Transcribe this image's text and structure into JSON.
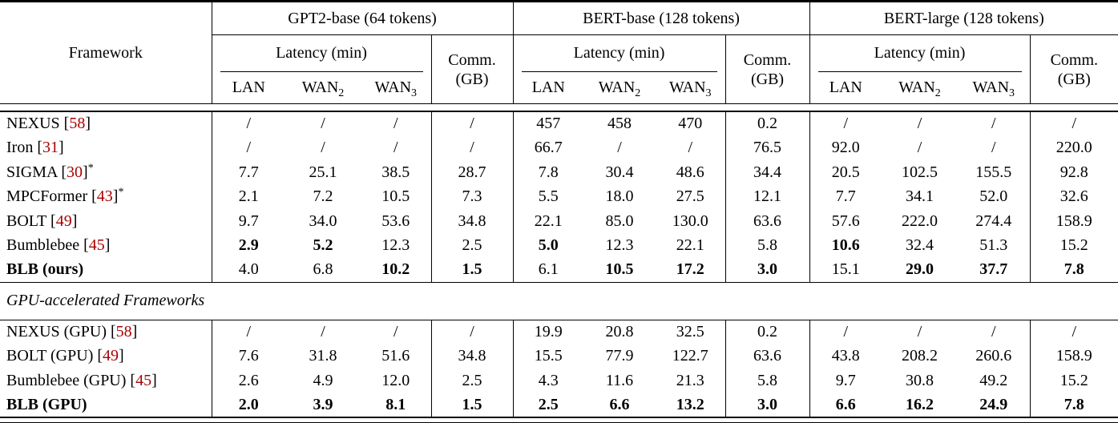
{
  "table": {
    "framework_label": "Framework",
    "subcols": [
      {
        "base": "LAN",
        "sub": ""
      },
      {
        "base": "WAN",
        "sub": "2"
      },
      {
        "base": "WAN",
        "sub": "3"
      }
    ],
    "groups": [
      {
        "title": "GPT2-base (64 tokens)",
        "latency_label": "Latency (min)",
        "comm_line1": "Comm.",
        "comm_line2": "(GB)"
      },
      {
        "title": "BERT-base (128 tokens)",
        "latency_label": "Latency (min)",
        "comm_line1": "Comm.",
        "comm_line2": "(GB)"
      },
      {
        "title": "BERT-large (128 tokens)",
        "latency_label": "Latency (min)",
        "comm_line1": "Comm.",
        "comm_line2": "(GB)"
      }
    ],
    "colors": {
      "citation": "#a90000",
      "text": "#000000",
      "rule": "#000000"
    },
    "sections": [
      {
        "label": "",
        "rows": [
          {
            "name": "NEXUS",
            "cite": "58",
            "sup": "",
            "bold": false,
            "cells": [
              {
                "v": "/",
                "b": false
              },
              {
                "v": "/",
                "b": false
              },
              {
                "v": "/",
                "b": false
              },
              {
                "v": "/",
                "b": false
              },
              {
                "v": "457",
                "b": false
              },
              {
                "v": "458",
                "b": false
              },
              {
                "v": "470",
                "b": false
              },
              {
                "v": "0.2",
                "b": false
              },
              {
                "v": "/",
                "b": false
              },
              {
                "v": "/",
                "b": false
              },
              {
                "v": "/",
                "b": false
              },
              {
                "v": "/",
                "b": false
              }
            ]
          },
          {
            "name": "Iron",
            "cite": "31",
            "sup": "",
            "bold": false,
            "cells": [
              {
                "v": "/",
                "b": false
              },
              {
                "v": "/",
                "b": false
              },
              {
                "v": "/",
                "b": false
              },
              {
                "v": "/",
                "b": false
              },
              {
                "v": "66.7",
                "b": false
              },
              {
                "v": "/",
                "b": false
              },
              {
                "v": "/",
                "b": false
              },
              {
                "v": "76.5",
                "b": false
              },
              {
                "v": "92.0",
                "b": false
              },
              {
                "v": "/",
                "b": false
              },
              {
                "v": "/",
                "b": false
              },
              {
                "v": "220.0",
                "b": false
              }
            ]
          },
          {
            "name": "SIGMA",
            "cite": "30",
            "sup": "*",
            "bold": false,
            "cells": [
              {
                "v": "7.7",
                "b": false
              },
              {
                "v": "25.1",
                "b": false
              },
              {
                "v": "38.5",
                "b": false
              },
              {
                "v": "28.7",
                "b": false
              },
              {
                "v": "7.8",
                "b": false
              },
              {
                "v": "30.4",
                "b": false
              },
              {
                "v": "48.6",
                "b": false
              },
              {
                "v": "34.4",
                "b": false
              },
              {
                "v": "20.5",
                "b": false
              },
              {
                "v": "102.5",
                "b": false
              },
              {
                "v": "155.5",
                "b": false
              },
              {
                "v": "92.8",
                "b": false
              }
            ]
          },
          {
            "name": "MPCFormer",
            "cite": "43",
            "sup": "*",
            "bold": false,
            "cells": [
              {
                "v": "2.1",
                "b": false
              },
              {
                "v": "7.2",
                "b": false
              },
              {
                "v": "10.5",
                "b": false
              },
              {
                "v": "7.3",
                "b": false
              },
              {
                "v": "5.5",
                "b": false
              },
              {
                "v": "18.0",
                "b": false
              },
              {
                "v": "27.5",
                "b": false
              },
              {
                "v": "12.1",
                "b": false
              },
              {
                "v": "7.7",
                "b": false
              },
              {
                "v": "34.1",
                "b": false
              },
              {
                "v": "52.0",
                "b": false
              },
              {
                "v": "32.6",
                "b": false
              }
            ]
          },
          {
            "name": "BOLT",
            "cite": "49",
            "sup": "",
            "bold": false,
            "cells": [
              {
                "v": "9.7",
                "b": false
              },
              {
                "v": "34.0",
                "b": false
              },
              {
                "v": "53.6",
                "b": false
              },
              {
                "v": "34.8",
                "b": false
              },
              {
                "v": "22.1",
                "b": false
              },
              {
                "v": "85.0",
                "b": false
              },
              {
                "v": "130.0",
                "b": false
              },
              {
                "v": "63.6",
                "b": false
              },
              {
                "v": "57.6",
                "b": false
              },
              {
                "v": "222.0",
                "b": false
              },
              {
                "v": "274.4",
                "b": false
              },
              {
                "v": "158.9",
                "b": false
              }
            ]
          },
          {
            "name": "Bumblebee",
            "cite": "45",
            "sup": "",
            "bold": false,
            "cells": [
              {
                "v": "2.9",
                "b": true
              },
              {
                "v": "5.2",
                "b": true
              },
              {
                "v": "12.3",
                "b": false
              },
              {
                "v": "2.5",
                "b": false
              },
              {
                "v": "5.0",
                "b": true
              },
              {
                "v": "12.3",
                "b": false
              },
              {
                "v": "22.1",
                "b": false
              },
              {
                "v": "5.8",
                "b": false
              },
              {
                "v": "10.6",
                "b": true
              },
              {
                "v": "32.4",
                "b": false
              },
              {
                "v": "51.3",
                "b": false
              },
              {
                "v": "15.2",
                "b": false
              }
            ]
          },
          {
            "name": "BLB (ours)",
            "cite": "",
            "sup": "",
            "bold": true,
            "cells": [
              {
                "v": "4.0",
                "b": false
              },
              {
                "v": "6.8",
                "b": false
              },
              {
                "v": "10.2",
                "b": true
              },
              {
                "v": "1.5",
                "b": true
              },
              {
                "v": "6.1",
                "b": false
              },
              {
                "v": "10.5",
                "b": true
              },
              {
                "v": "17.2",
                "b": true
              },
              {
                "v": "3.0",
                "b": true
              },
              {
                "v": "15.1",
                "b": false
              },
              {
                "v": "29.0",
                "b": true
              },
              {
                "v": "37.7",
                "b": true
              },
              {
                "v": "7.8",
                "b": true
              }
            ]
          }
        ]
      },
      {
        "label": "GPU-accelerated Frameworks",
        "rows": [
          {
            "name": "NEXUS (GPU)",
            "cite": "58",
            "sup": "",
            "bold": false,
            "cells": [
              {
                "v": "/",
                "b": false
              },
              {
                "v": "/",
                "b": false
              },
              {
                "v": "/",
                "b": false
              },
              {
                "v": "/",
                "b": false
              },
              {
                "v": "19.9",
                "b": false
              },
              {
                "v": "20.8",
                "b": false
              },
              {
                "v": "32.5",
                "b": false
              },
              {
                "v": "0.2",
                "b": false
              },
              {
                "v": "/",
                "b": false
              },
              {
                "v": "/",
                "b": false
              },
              {
                "v": "/",
                "b": false
              },
              {
                "v": "/",
                "b": false
              }
            ]
          },
          {
            "name": "BOLT (GPU)",
            "cite": "49",
            "sup": "",
            "bold": false,
            "cells": [
              {
                "v": "7.6",
                "b": false
              },
              {
                "v": "31.8",
                "b": false
              },
              {
                "v": "51.6",
                "b": false
              },
              {
                "v": "34.8",
                "b": false
              },
              {
                "v": "15.5",
                "b": false
              },
              {
                "v": "77.9",
                "b": false
              },
              {
                "v": "122.7",
                "b": false
              },
              {
                "v": "63.6",
                "b": false
              },
              {
                "v": "43.8",
                "b": false
              },
              {
                "v": "208.2",
                "b": false
              },
              {
                "v": "260.6",
                "b": false
              },
              {
                "v": "158.9",
                "b": false
              }
            ]
          },
          {
            "name": "Bumblebee (GPU)",
            "cite": "45",
            "sup": "",
            "bold": false,
            "cells": [
              {
                "v": "2.6",
                "b": false
              },
              {
                "v": "4.9",
                "b": false
              },
              {
                "v": "12.0",
                "b": false
              },
              {
                "v": "2.5",
                "b": false
              },
              {
                "v": "4.3",
                "b": false
              },
              {
                "v": "11.6",
                "b": false
              },
              {
                "v": "21.3",
                "b": false
              },
              {
                "v": "5.8",
                "b": false
              },
              {
                "v": "9.7",
                "b": false
              },
              {
                "v": "30.8",
                "b": false
              },
              {
                "v": "49.2",
                "b": false
              },
              {
                "v": "15.2",
                "b": false
              }
            ]
          },
          {
            "name": "BLB (GPU)",
            "cite": "",
            "sup": "",
            "bold": true,
            "cells": [
              {
                "v": "2.0",
                "b": true
              },
              {
                "v": "3.9",
                "b": true
              },
              {
                "v": "8.1",
                "b": true
              },
              {
                "v": "1.5",
                "b": true
              },
              {
                "v": "2.5",
                "b": true
              },
              {
                "v": "6.6",
                "b": true
              },
              {
                "v": "13.2",
                "b": true
              },
              {
                "v": "3.0",
                "b": true
              },
              {
                "v": "6.6",
                "b": true
              },
              {
                "v": "16.2",
                "b": true
              },
              {
                "v": "24.9",
                "b": true
              },
              {
                "v": "7.8",
                "b": true
              }
            ]
          }
        ]
      }
    ]
  }
}
